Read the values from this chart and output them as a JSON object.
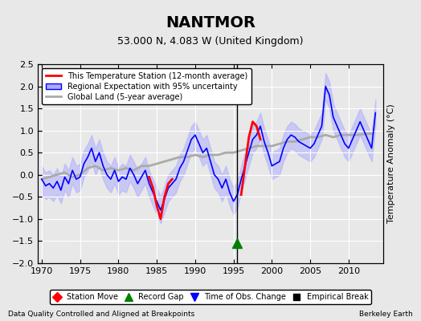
{
  "title": "NANTMOR",
  "subtitle": "53.000 N, 4.083 W (United Kingdom)",
  "ylabel": "Temperature Anomaly (°C)",
  "xlim": [
    1969.5,
    2014.5
  ],
  "ylim": [
    -2.0,
    2.5
  ],
  "yticks": [
    -2,
    -1.5,
    -1,
    -0.5,
    0,
    0.5,
    1,
    1.5,
    2,
    2.5
  ],
  "xticks": [
    1970,
    1975,
    1980,
    1985,
    1990,
    1995,
    2000,
    2005,
    2010
  ],
  "bg_color": "#e8e8e8",
  "plot_bg_color": "#e8e8e8",
  "grid_color": "white",
  "footer_left": "Data Quality Controlled and Aligned at Breakpoints",
  "footer_right": "Berkeley Earth",
  "legend_entries": [
    {
      "label": "This Temperature Station (12-month average)",
      "color": "red",
      "lw": 2
    },
    {
      "label": "Regional Expectation with 95% uncertainty",
      "color": "blue",
      "lw": 1.5
    },
    {
      "label": "Global Land (5-year average)",
      "color": "#aaaaaa",
      "lw": 2
    }
  ],
  "marker_legend": [
    {
      "label": "Station Move",
      "marker": "D",
      "color": "red"
    },
    {
      "label": "Record Gap",
      "marker": "^",
      "color": "green"
    },
    {
      "label": "Time of Obs. Change",
      "marker": "v",
      "color": "blue"
    },
    {
      "label": "Empirical Break",
      "marker": "s",
      "color": "black"
    }
  ],
  "obs_change_x": 1995.5,
  "record_gap_x": 1995.5,
  "record_gap_y": -1.55,
  "vertical_line_x": 1995.5,
  "blue_years": [
    1970,
    1970.5,
    1971,
    1971.5,
    1972,
    1972.5,
    1973,
    1973.5,
    1974,
    1974.5,
    1975,
    1975.5,
    1976,
    1976.5,
    1977,
    1977.5,
    1978,
    1978.5,
    1979,
    1979.5,
    1980,
    1980.5,
    1981,
    1981.5,
    1982,
    1982.5,
    1983,
    1983.5,
    1984,
    1984.5,
    1985,
    1985.5,
    1986,
    1986.5,
    1987,
    1987.5,
    1988,
    1988.5,
    1989,
    1989.5,
    1990,
    1990.5,
    1991,
    1991.5,
    1992,
    1992.5,
    1993,
    1993.5,
    1994,
    1994.5,
    1995,
    1995.5,
    1996,
    1996.5,
    1997,
    1997.5,
    1998,
    1998.5,
    1999,
    1999.5,
    2000,
    2000.5,
    2001,
    2001.5,
    2002,
    2002.5,
    2003,
    2003.5,
    2004,
    2004.5,
    2005,
    2005.5,
    2006,
    2006.5,
    2007,
    2007.5,
    2008,
    2008.5,
    2009,
    2009.5,
    2010,
    2010.5,
    2011,
    2011.5,
    2012,
    2012.5,
    2013,
    2013.5
  ],
  "blue_vals": [
    -0.1,
    -0.25,
    -0.2,
    -0.3,
    -0.15,
    -0.35,
    -0.05,
    -0.2,
    0.1,
    -0.1,
    -0.05,
    0.25,
    0.4,
    0.6,
    0.3,
    0.5,
    0.2,
    0.0,
    -0.1,
    0.1,
    -0.15,
    -0.05,
    -0.1,
    0.15,
    0.0,
    -0.2,
    -0.05,
    0.1,
    -0.2,
    -0.4,
    -0.6,
    -0.8,
    -0.55,
    -0.3,
    -0.2,
    -0.1,
    0.15,
    0.3,
    0.55,
    0.8,
    0.9,
    0.7,
    0.5,
    0.6,
    0.3,
    0.0,
    -0.1,
    -0.3,
    -0.1,
    -0.4,
    -0.6,
    -0.45,
    -0.1,
    0.2,
    0.5,
    0.8,
    0.9,
    1.1,
    0.75,
    0.5,
    0.2,
    0.25,
    0.3,
    0.6,
    0.8,
    0.9,
    0.85,
    0.75,
    0.7,
    0.65,
    0.6,
    0.7,
    0.9,
    1.1,
    2.0,
    1.8,
    1.3,
    1.1,
    0.9,
    0.7,
    0.6,
    0.8,
    1.0,
    1.2,
    1.0,
    0.8,
    0.6,
    1.4
  ],
  "blue_upper": [
    0.2,
    0.05,
    0.1,
    0.0,
    0.15,
    -0.05,
    0.25,
    0.1,
    0.4,
    0.2,
    0.25,
    0.55,
    0.7,
    0.9,
    0.6,
    0.8,
    0.5,
    0.3,
    0.2,
    0.4,
    0.15,
    0.25,
    0.2,
    0.45,
    0.3,
    0.1,
    0.25,
    0.4,
    0.1,
    -0.1,
    -0.3,
    -0.5,
    -0.25,
    0.0,
    0.1,
    0.2,
    0.45,
    0.6,
    0.85,
    1.1,
    1.2,
    1.0,
    0.8,
    0.9,
    0.6,
    0.3,
    0.2,
    0.0,
    0.2,
    -0.1,
    -0.3,
    -0.15,
    0.2,
    0.5,
    0.8,
    1.1,
    1.2,
    1.4,
    1.05,
    0.8,
    0.5,
    0.55,
    0.6,
    0.9,
    1.1,
    1.2,
    1.15,
    1.05,
    1.0,
    0.95,
    0.9,
    1.0,
    1.2,
    1.4,
    2.3,
    2.1,
    1.6,
    1.4,
    1.2,
    1.0,
    0.9,
    1.1,
    1.3,
    1.5,
    1.3,
    1.1,
    0.9,
    1.7
  ],
  "blue_lower": [
    -0.4,
    -0.55,
    -0.5,
    -0.6,
    -0.45,
    -0.65,
    -0.35,
    -0.5,
    -0.2,
    -0.4,
    -0.35,
    -0.05,
    0.1,
    0.3,
    0.0,
    0.2,
    -0.1,
    -0.3,
    -0.4,
    -0.2,
    -0.45,
    -0.35,
    -0.4,
    -0.15,
    -0.3,
    -0.5,
    -0.35,
    -0.2,
    -0.5,
    -0.7,
    -0.9,
    -1.1,
    -0.85,
    -0.6,
    -0.5,
    -0.4,
    -0.15,
    0.0,
    0.25,
    0.5,
    0.6,
    0.4,
    0.2,
    0.3,
    0.0,
    -0.3,
    -0.4,
    -0.6,
    -0.4,
    -0.7,
    -0.9,
    -0.75,
    -0.4,
    -0.1,
    0.2,
    0.5,
    0.6,
    0.8,
    0.45,
    0.2,
    -0.1,
    -0.05,
    0.0,
    0.3,
    0.5,
    0.6,
    0.55,
    0.45,
    0.4,
    0.35,
    0.3,
    0.4,
    0.6,
    0.8,
    1.7,
    1.5,
    1.0,
    0.8,
    0.6,
    0.4,
    0.3,
    0.5,
    0.7,
    0.9,
    0.7,
    0.5,
    0.3,
    1.1
  ],
  "gray_years": [
    1970,
    1971,
    1972,
    1973,
    1974,
    1975,
    1976,
    1977,
    1978,
    1979,
    1980,
    1981,
    1982,
    1983,
    1984,
    1985,
    1986,
    1987,
    1988,
    1989,
    1990,
    1991,
    1992,
    1993,
    1994,
    1995,
    1996,
    1997,
    1998,
    1999,
    2000,
    2001,
    2002,
    2003,
    2004,
    2005,
    2006,
    2007,
    2008,
    2009,
    2010,
    2011,
    2012,
    2013
  ],
  "gray_vals": [
    -0.1,
    -0.05,
    0.0,
    0.05,
    -0.05,
    0.0,
    0.15,
    0.2,
    0.1,
    0.15,
    0.1,
    0.15,
    0.1,
    0.2,
    0.2,
    0.25,
    0.3,
    0.35,
    0.4,
    0.4,
    0.45,
    0.4,
    0.45,
    0.45,
    0.5,
    0.5,
    0.55,
    0.6,
    0.65,
    0.65,
    0.65,
    0.7,
    0.75,
    0.75,
    0.8,
    0.85,
    0.85,
    0.9,
    0.85,
    0.9,
    0.9,
    0.9,
    0.92,
    0.93
  ],
  "red_years_seg1": [
    1984.0,
    1984.5,
    1985.0,
    1985.5,
    1986.0,
    1986.5,
    1987.0
  ],
  "red_vals_seg1": [
    -0.05,
    -0.3,
    -0.7,
    -1.0,
    -0.5,
    -0.2,
    -0.1
  ],
  "red_years_seg2": [
    1996.0,
    1996.5,
    1997.0,
    1997.5,
    1998.0,
    1998.5
  ],
  "red_vals_seg2": [
    -0.45,
    0.2,
    0.85,
    1.2,
    1.1,
    0.8
  ]
}
